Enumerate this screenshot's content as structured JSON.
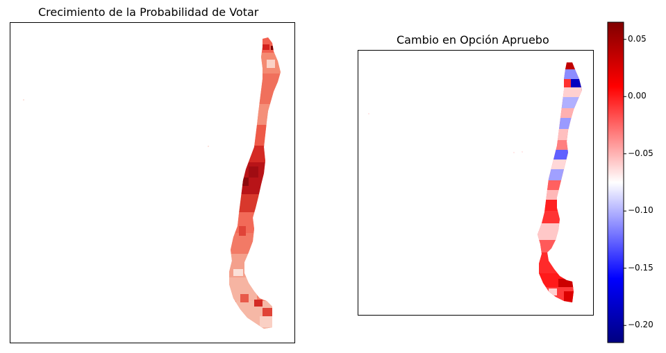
{
  "left_map": {
    "title": "Crecimiento de la Probabilidad de Votar"
  },
  "right_map": {
    "title": "Cambio en Opción Apruebo"
  },
  "colorbar": {
    "colormap": "seismic",
    "range": [
      -0.215,
      0.065
    ],
    "tick_values": [
      0.05,
      0.0,
      -0.05,
      -0.1,
      -0.15,
      -0.2
    ],
    "tick_labels": [
      "0.05",
      "0.00",
      "−0.05",
      "−0.10",
      "−0.15",
      "−0.20"
    ]
  },
  "colors": {
    "dark_red": "#800000",
    "red": "#ff0000",
    "white": "#ffffff",
    "blue": "#0000ff",
    "dark_blue": "#000080"
  }
}
